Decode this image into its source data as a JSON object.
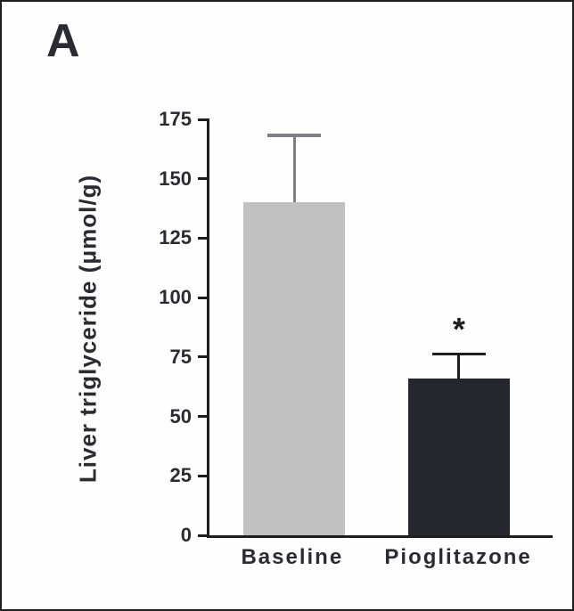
{
  "panel_label": "A",
  "chart_data": {
    "type": "bar",
    "categories": [
      "Baseline",
      "Pioglitazone"
    ],
    "values": [
      140,
      66
    ],
    "errors_plus": [
      29,
      11
    ],
    "title": "",
    "xlabel": "",
    "ylabel": "Liver triglyceride (μmol/g)",
    "ylim": [
      0,
      175
    ],
    "yticks": [
      0,
      25,
      50,
      75,
      100,
      125,
      150,
      175
    ],
    "bar_colors": [
      "#c1c1c1",
      "#26262e"
    ],
    "error_colors": [
      "#7e7e86",
      "#1d1d22"
    ],
    "annotations": [
      {
        "series_index": 1,
        "text": "*"
      }
    ],
    "grid": false,
    "legend": null
  }
}
